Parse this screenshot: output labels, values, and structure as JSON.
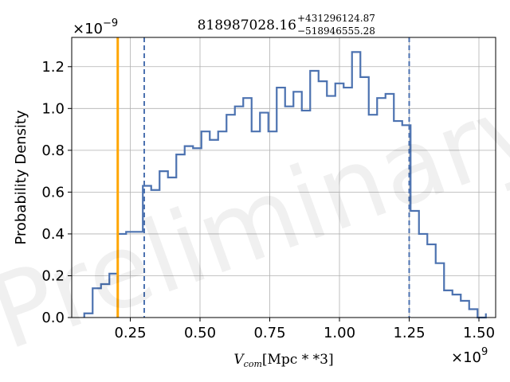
{
  "chart_data": {
    "type": "histogram",
    "title": {
      "base": "818987028.16",
      "upper": "+431296124.87",
      "lower": "−518946555.28"
    },
    "xlabel": {
      "symbol": "V",
      "subscript": "com",
      "unit": "[Mpc * *3]"
    },
    "ylabel": "Probability Density",
    "x_offset": {
      "base": "×10",
      "exp": "9"
    },
    "y_offset": {
      "base": "×10",
      "exp": "−9"
    },
    "x_scale": 1000000000.0,
    "y_scale": 1e-09,
    "xlim": [
      0.04,
      1.56
    ],
    "ylim": [
      0,
      1.34
    ],
    "grid": true,
    "x_ticks": [
      0.25,
      0.5,
      0.75,
      1.0,
      1.25,
      1.5
    ],
    "x_tick_labels": [
      "0.25",
      "0.50",
      "0.75",
      "1.00",
      "1.25",
      "1.50"
    ],
    "y_ticks": [
      0.0,
      0.2,
      0.4,
      0.6,
      0.8,
      1.0,
      1.2
    ],
    "y_tick_labels": [
      "0.0",
      "0.2",
      "0.4",
      "0.6",
      "0.8",
      "1.0",
      "1.2"
    ],
    "bin_edges": [
      0.085,
      0.115,
      0.145,
      0.175,
      0.205,
      0.235,
      0.265,
      0.295,
      0.325,
      0.355,
      0.385,
      0.415,
      0.445,
      0.475,
      0.505,
      0.535,
      0.565,
      0.595,
      0.625,
      0.655,
      0.685,
      0.715,
      0.745,
      0.775,
      0.805,
      0.835,
      0.865,
      0.895,
      0.925,
      0.955,
      0.985,
      1.015,
      1.045,
      1.075,
      1.105,
      1.135,
      1.165,
      1.195,
      1.225,
      1.255,
      1.285,
      1.315,
      1.345,
      1.375,
      1.405,
      1.435,
      1.465,
      1.495,
      1.525
    ],
    "values": [
      0.02,
      0.14,
      0.16,
      0.21,
      0.4,
      0.41,
      0.41,
      0.63,
      0.61,
      0.7,
      0.67,
      0.78,
      0.82,
      0.81,
      0.89,
      0.85,
      0.89,
      0.97,
      1.01,
      1.05,
      0.89,
      0.98,
      0.89,
      1.1,
      1.01,
      1.08,
      0.99,
      1.18,
      1.13,
      1.06,
      1.12,
      1.1,
      1.27,
      1.15,
      0.97,
      1.05,
      1.07,
      0.94,
      0.92,
      0.51,
      0.4,
      0.35,
      0.26,
      0.13,
      0.11,
      0.08,
      0.04,
      0.0,
      0.02
    ],
    "series_color": "#4c72b0",
    "vlines": [
      {
        "x": 0.205,
        "color": "#ffa500",
        "style": "solid"
      },
      {
        "x": 0.3,
        "color": "#4c72b0",
        "style": "dashed"
      },
      {
        "x": 1.25,
        "color": "#4c72b0",
        "style": "dashed"
      }
    ],
    "watermark": "Preliminary"
  }
}
